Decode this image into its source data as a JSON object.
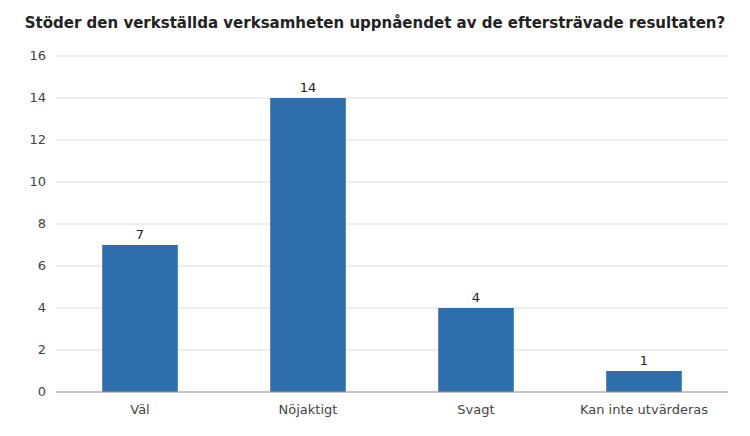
{
  "chart_data": {
    "type": "bar",
    "title": "Stöder den verkställda verksamheten uppnåendet av de eftersträvade resultaten?",
    "categories": [
      "Väl",
      "Nöjaktigt",
      "Svagt",
      "Kan inte utvärderas"
    ],
    "values": [
      7,
      14,
      4,
      1
    ],
    "color": "#2E6EAD",
    "ylim": [
      0,
      16
    ],
    "yticks": [
      0,
      2,
      4,
      6,
      8,
      10,
      12,
      14,
      16
    ],
    "grid": true,
    "data_labels": true
  }
}
